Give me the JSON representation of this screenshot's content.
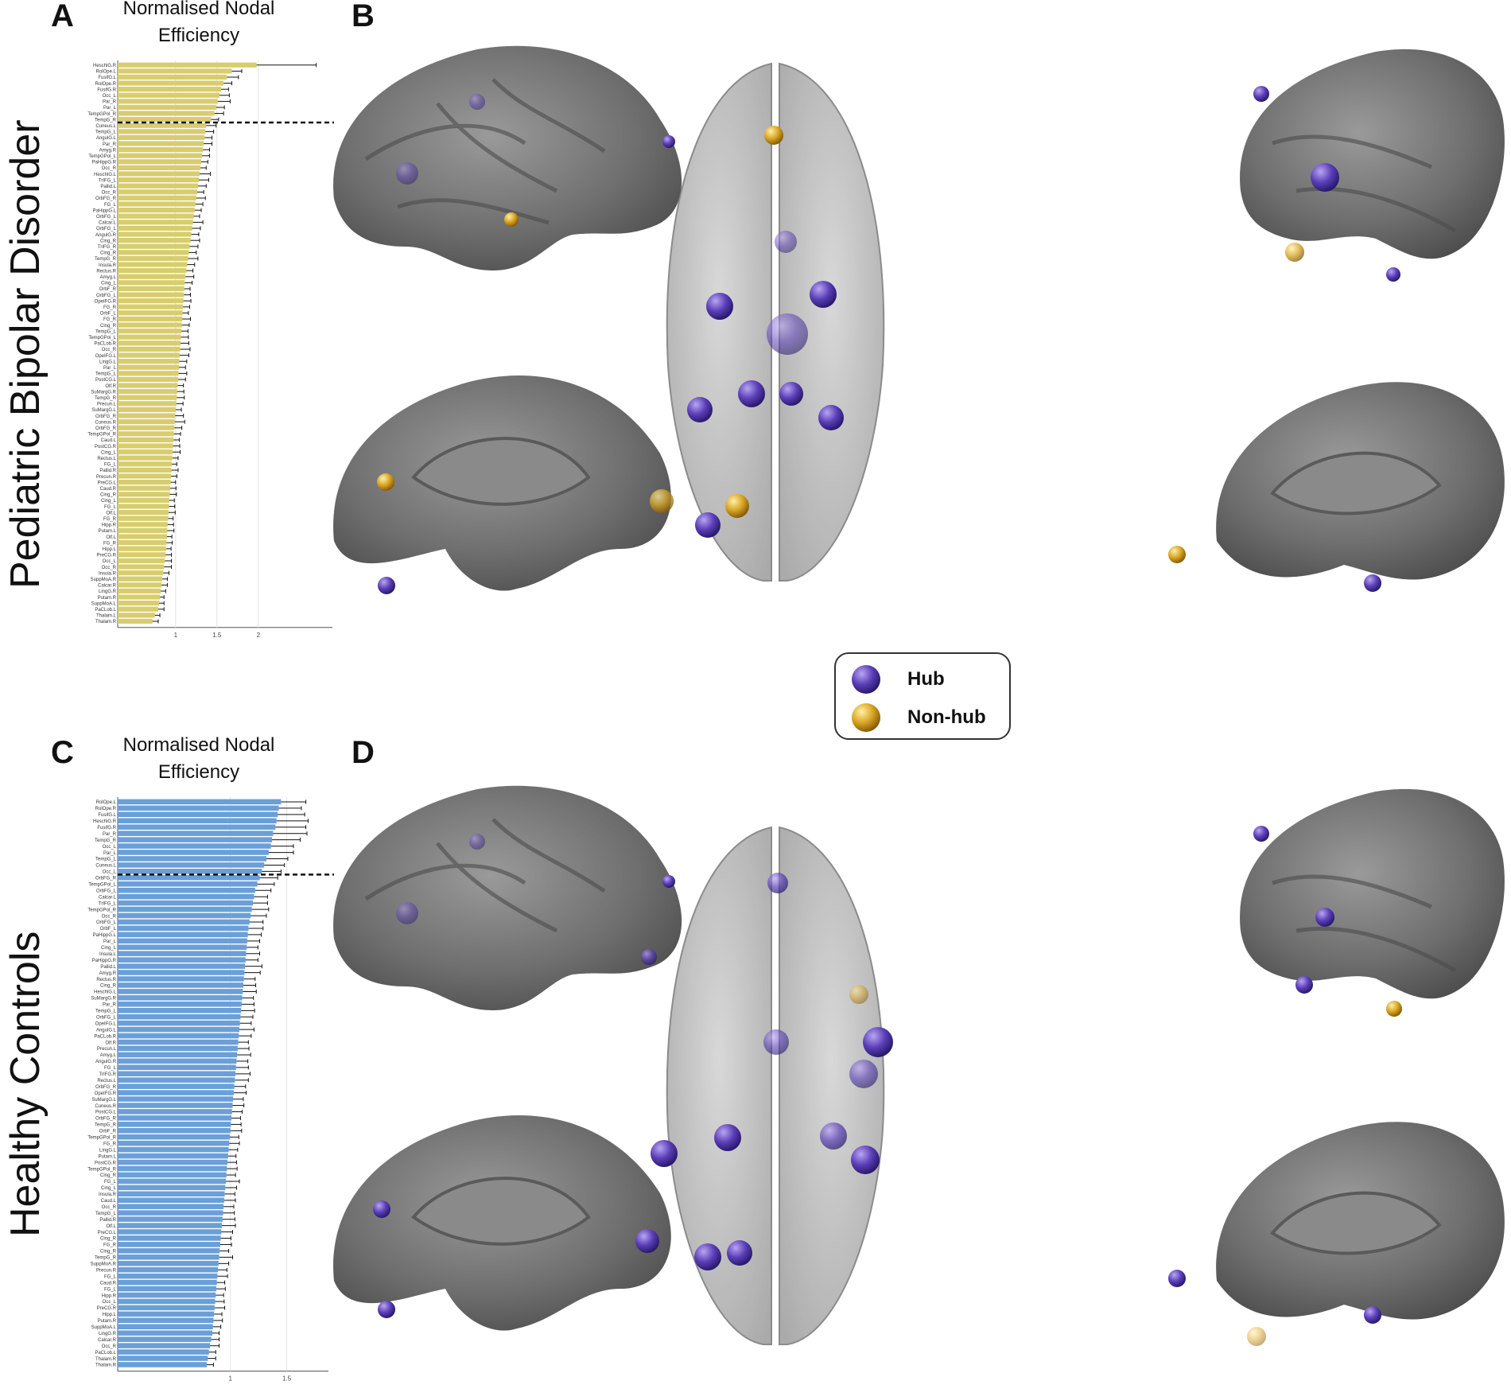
{
  "panels": {
    "a": "A",
    "b": "B",
    "c": "C",
    "d": "D"
  },
  "row_labels": {
    "top": "Pediatric Bipolar Disorder",
    "bottom": "Healthy Controls"
  },
  "legend": {
    "hub": "Hub",
    "non_hub": "Non-hub"
  },
  "colors": {
    "pbd_bar": "#d8cd6e",
    "hc_bar": "#6a9fd8",
    "hub": "#5b3fb8",
    "non_hub": "#d9a624",
    "brain": "#6f6f6f"
  },
  "chart_data": [
    {
      "type": "bar",
      "orientation": "horizontal",
      "title": "Normalised Nodal Efficiency",
      "xlim": [
        0.3,
        2.8
      ],
      "xticks": [
        "1",
        "1.5",
        "2"
      ],
      "hub_threshold_after_index": 10,
      "categories": [
        "HeschlG.R",
        "RolOpe.L",
        "FusifG.L",
        "RolOpe.R",
        "FusifG.R",
        "Occ_L",
        "Par_R",
        "Par_L",
        "TempGPol_R",
        "TempG_R",
        "Cuneus.L",
        "TempG_L",
        "AngulG.L",
        "Par_R",
        "Amyg.R",
        "TempGPol_L",
        "PaHippG.R",
        "Occ_R",
        "HeschlG.L",
        "TrIFG_L",
        "Pallid.L",
        "Occ_R",
        "OrbFG_R",
        "FG_L",
        "PaHippG.L",
        "OrbFG_L",
        "Calcar.L",
        "OrbFG_L",
        "AngulG.R",
        "Cing_R",
        "TrIFG_R",
        "Cing_R",
        "TempG_R",
        "Insula.R",
        "Rectus.R",
        "Amyg.L",
        "Cing_L",
        "OrbF_R",
        "OrbFG_L",
        "OpeIFG.R",
        "FG_R",
        "OrbF_L",
        "FG_R",
        "Cing_R",
        "TempG_L",
        "TempGPol_L",
        "PaCLob.R",
        "Occ_R",
        "OpeIFG.L",
        "LingG.L",
        "Par_L",
        "TempG_L",
        "PostCG.L",
        "Olf.R",
        "SuMargG.R",
        "TempG_R",
        "Precun.L",
        "SuMargG.L",
        "OrbFG_R",
        "Cuneus.R",
        "OrbFG_R",
        "TempGPol_R",
        "Caud.L",
        "PostCG.R",
        "Cing_L",
        "Rectus.L",
        "FG_L",
        "Pallid.R",
        "Precun.R",
        "PreCG.L",
        "Caud.R",
        "Cing_R",
        "Cing_L",
        "FG_L",
        "Olf.L",
        "FG_R",
        "Hipp.R",
        "Putam.L",
        "Olf.L",
        "FG_R",
        "Hipp.L",
        "PreCG.R",
        "Occ_L",
        "Occ_R",
        "Insula.R",
        "SuppMoA.R",
        "Calcar.R",
        "LingG.R",
        "Putam.R",
        "SuppMoA.L",
        "PaCLob.L",
        "Thalam.L",
        "Thalam.R"
      ],
      "values": [
        1.98,
        1.68,
        1.62,
        1.58,
        1.55,
        1.53,
        1.51,
        1.49,
        1.47,
        1.43,
        1.37,
        1.36,
        1.35,
        1.34,
        1.33,
        1.32,
        1.31,
        1.3,
        1.29,
        1.28,
        1.27,
        1.26,
        1.25,
        1.24,
        1.23,
        1.22,
        1.21,
        1.2,
        1.19,
        1.18,
        1.17,
        1.16,
        1.15,
        1.14,
        1.13,
        1.12,
        1.11,
        1.105,
        1.1,
        1.095,
        1.09,
        1.085,
        1.08,
        1.075,
        1.07,
        1.065,
        1.06,
        1.055,
        1.05,
        1.045,
        1.04,
        1.035,
        1.03,
        1.025,
        1.02,
        1.015,
        1.01,
        1.0,
        0.995,
        0.99,
        0.985,
        0.98,
        0.975,
        0.97,
        0.965,
        0.96,
        0.955,
        0.95,
        0.945,
        0.94,
        0.935,
        0.93,
        0.925,
        0.92,
        0.915,
        0.91,
        0.905,
        0.9,
        0.895,
        0.89,
        0.885,
        0.88,
        0.87,
        0.86,
        0.85,
        0.84,
        0.83,
        0.82,
        0.81,
        0.8,
        0.79,
        0.75,
        0.72
      ],
      "errors": [
        0.72,
        0.12,
        0.14,
        0.1,
        0.09,
        0.12,
        0.15,
        0.1,
        0.11,
        0.09,
        0.12,
        0.1,
        0.09,
        0.1,
        0.08,
        0.09,
        0.08,
        0.07,
        0.13,
        0.12,
        0.1,
        0.08,
        0.11,
        0.09,
        0.08,
        0.07,
        0.12,
        0.1,
        0.09,
        0.11,
        0.1,
        0.09,
        0.12,
        0.09,
        0.08,
        0.1,
        0.09,
        0.07,
        0.08,
        0.09,
        0.08,
        0.07,
        0.1,
        0.09,
        0.08,
        0.09,
        0.1,
        0.12,
        0.11,
        0.09,
        0.08,
        0.1,
        0.09,
        0.07,
        0.08,
        0.09,
        0.08,
        0.07,
        0.1,
        0.12,
        0.09,
        0.08,
        0.07,
        0.08,
        0.09,
        0.07,
        0.06,
        0.08,
        0.07,
        0.06,
        0.07,
        0.08,
        0.06,
        0.07,
        0.08,
        0.06,
        0.07,
        0.08,
        0.06,
        0.07,
        0.06,
        0.07,
        0.08,
        0.09,
        0.07,
        0.06,
        0.07,
        0.06,
        0.05,
        0.06,
        0.07,
        0.06,
        0.07
      ]
    },
    {
      "type": "bar",
      "orientation": "horizontal",
      "title": "Normalised Nodal Efficiency",
      "xlim": [
        0.0,
        1.8
      ],
      "xticks": [
        "1",
        "1.5"
      ],
      "hub_threshold_after_index": 12,
      "categories": [
        "RolOpe.L",
        "RolOpe.R",
        "FusifG.L",
        "HeschlG.R",
        "FusifG.R",
        "Par_R",
        "TempG_R",
        "Occ_L",
        "Par_L",
        "TempG_L",
        "Cuneus.L",
        "Occ_L",
        "OrbFG_R",
        "TempGPol_L",
        "OrbFG_L",
        "Calcar.L",
        "TrIFG_L",
        "TempGPol_R",
        "Occ_R",
        "OrbFG_L",
        "OrbF_L",
        "PaHippG.L",
        "Par_L",
        "Cing_L",
        "Insula.L",
        "PaHippG.R",
        "Pallid.L",
        "Amyg.R",
        "Rectus.R",
        "Cing_R",
        "HeschlG.L",
        "SuMargG.R",
        "Par_R",
        "TempG_L",
        "OrbFG_L",
        "OpeIFG.L",
        "AngulG.L",
        "PaCLob.R",
        "Olf.R",
        "Precun.L",
        "Amyg.L",
        "AngulG.R",
        "FG_L",
        "TrIFG.R",
        "Rectus.L",
        "OrbFG_R",
        "OpeIFG.R",
        "SuMargG.L",
        "Cuneus.R",
        "PostCG.L",
        "OrbFG_R",
        "TempG_R",
        "OrbF_R",
        "TempGPol_R",
        "FG_R",
        "LingG.L",
        "Putam.L",
        "PostCG.R",
        "TempGPol_R",
        "Cing_R",
        "FG_L",
        "Cing_L",
        "Insula.R",
        "Caud.L",
        "Occ_R",
        "TempG_L",
        "Pallid.R",
        "Olf.L",
        "PreCG.L",
        "Cing_R",
        "FG_R",
        "Cing_R",
        "TempG_R",
        "SuppMoA.R",
        "Precun.R",
        "FG_L",
        "Caud.R",
        "FG_L",
        "Hipp.R",
        "Occ_L",
        "PreCG.R",
        "Hipp.L",
        "Putam.R",
        "SuppMoA.L",
        "LingG.R",
        "Calcar.R",
        "Occ_R",
        "PaCLob.L",
        "Thalam.R",
        "Thalam.R"
      ],
      "values": [
        1.45,
        1.43,
        1.42,
        1.41,
        1.4,
        1.38,
        1.37,
        1.36,
        1.34,
        1.32,
        1.3,
        1.28,
        1.26,
        1.24,
        1.22,
        1.21,
        1.2,
        1.19,
        1.18,
        1.17,
        1.16,
        1.155,
        1.15,
        1.145,
        1.14,
        1.135,
        1.13,
        1.125,
        1.12,
        1.115,
        1.11,
        1.105,
        1.1,
        1.095,
        1.09,
        1.085,
        1.08,
        1.075,
        1.07,
        1.065,
        1.06,
        1.055,
        1.05,
        1.045,
        1.04,
        1.035,
        1.03,
        1.025,
        1.02,
        1.015,
        1.01,
        1.005,
        1.0,
        0.995,
        0.99,
        0.985,
        0.98,
        0.975,
        0.97,
        0.965,
        0.96,
        0.955,
        0.95,
        0.945,
        0.94,
        0.935,
        0.93,
        0.925,
        0.92,
        0.915,
        0.91,
        0.905,
        0.9,
        0.895,
        0.89,
        0.885,
        0.88,
        0.875,
        0.87,
        0.865,
        0.86,
        0.855,
        0.85,
        0.845,
        0.84,
        0.83,
        0.82,
        0.81,
        0.8,
        0.79
      ],
      "errors": [
        0.22,
        0.2,
        0.24,
        0.28,
        0.27,
        0.3,
        0.25,
        0.2,
        0.22,
        0.19,
        0.18,
        0.17,
        0.16,
        0.15,
        0.14,
        0.12,
        0.13,
        0.15,
        0.14,
        0.12,
        0.13,
        0.12,
        0.11,
        0.1,
        0.12,
        0.11,
        0.15,
        0.14,
        0.1,
        0.11,
        0.12,
        0.1,
        0.11,
        0.12,
        0.11,
        0.1,
        0.13,
        0.11,
        0.09,
        0.1,
        0.12,
        0.1,
        0.11,
        0.13,
        0.12,
        0.1,
        0.11,
        0.09,
        0.1,
        0.09,
        0.08,
        0.09,
        0.1,
        0.08,
        0.09,
        0.08,
        0.07,
        0.08,
        0.09,
        0.08,
        0.12,
        0.1,
        0.09,
        0.1,
        0.09,
        0.1,
        0.11,
        0.12,
        0.1,
        0.09,
        0.1,
        0.08,
        0.12,
        0.09,
        0.08,
        0.09,
        0.07,
        0.08,
        0.07,
        0.08,
        0.09,
        0.07,
        0.08,
        0.07,
        0.06,
        0.07,
        0.08,
        0.06,
        0.07,
        0.06
      ]
    }
  ]
}
